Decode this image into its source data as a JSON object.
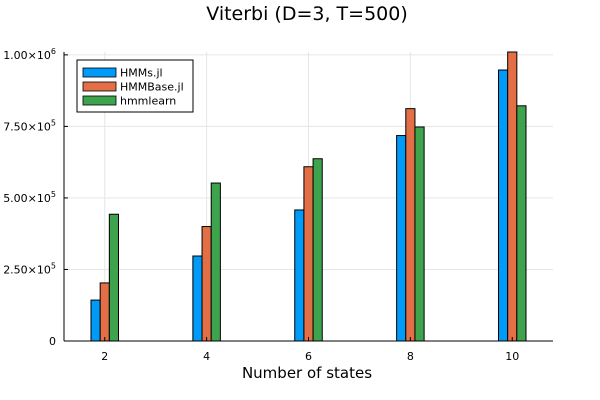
{
  "chart_data": {
    "type": "bar",
    "title": "Viterbi (D=3, T=500)",
    "xlabel": "Number of states",
    "ylabel": "",
    "categories": [
      2,
      4,
      6,
      8,
      10
    ],
    "xticks": [
      "2",
      "4",
      "6",
      "8",
      "10"
    ],
    "yticks": [
      {
        "value": 0,
        "base": "0",
        "exp": ""
      },
      {
        "value": 250000,
        "base": "2.50×10",
        "exp": "5"
      },
      {
        "value": 500000,
        "base": "5.00×10",
        "exp": "5"
      },
      {
        "value": 750000,
        "base": "7.50×10",
        "exp": "5"
      },
      {
        "value": 1000000,
        "base": "1.00×10",
        "exp": "6"
      }
    ],
    "ylim": [
      0,
      1010000
    ],
    "xlim": [
      1.2,
      10.8
    ],
    "grid": true,
    "legend_position": "top-left",
    "series": [
      {
        "name": "HMMs.jl",
        "color": "#009af9",
        "values": [
          143000,
          297000,
          458000,
          718000,
          947000
        ]
      },
      {
        "name": "HMMBase.jl",
        "color": "#e26f46",
        "values": [
          203000,
          400000,
          609000,
          812000,
          1020000
        ]
      },
      {
        "name": "hmmlearn",
        "color": "#3da44d",
        "values": [
          443000,
          552000,
          637000,
          748000,
          822000
        ]
      }
    ]
  }
}
